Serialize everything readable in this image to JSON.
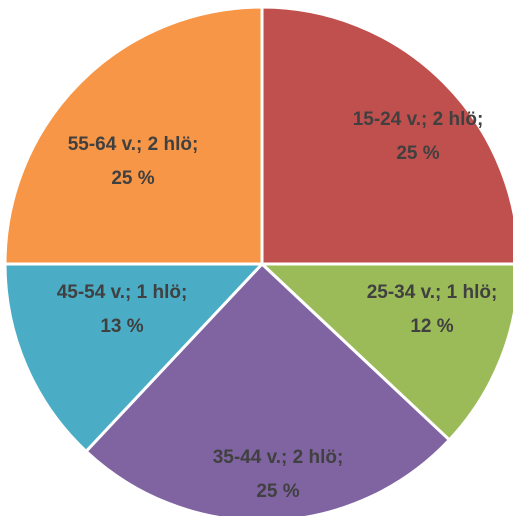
{
  "chart_data": {
    "type": "pie",
    "title": "",
    "start_angle": "12 o'clock, clockwise",
    "slices": [
      {
        "line1": "15-24 v.; 2 hlö;",
        "line2": "25 %",
        "value": 25,
        "color": "#C0504D"
      },
      {
        "line1": "25-34 v.; 1 hlö;",
        "line2": "12 %",
        "value": 12,
        "color": "#9BBB59"
      },
      {
        "line1": "35-44 v.; 2 hlö;",
        "line2": "25 %",
        "value": 25,
        "color": "#8064A2"
      },
      {
        "line1": "45-54 v.; 1 hlö;",
        "line2": "13 %",
        "value": 13,
        "color": "#4BACC6"
      },
      {
        "line1": "55-64 v.; 2 hlö;",
        "line2": "25 %",
        "value": 25,
        "color": "#F79646"
      }
    ]
  }
}
